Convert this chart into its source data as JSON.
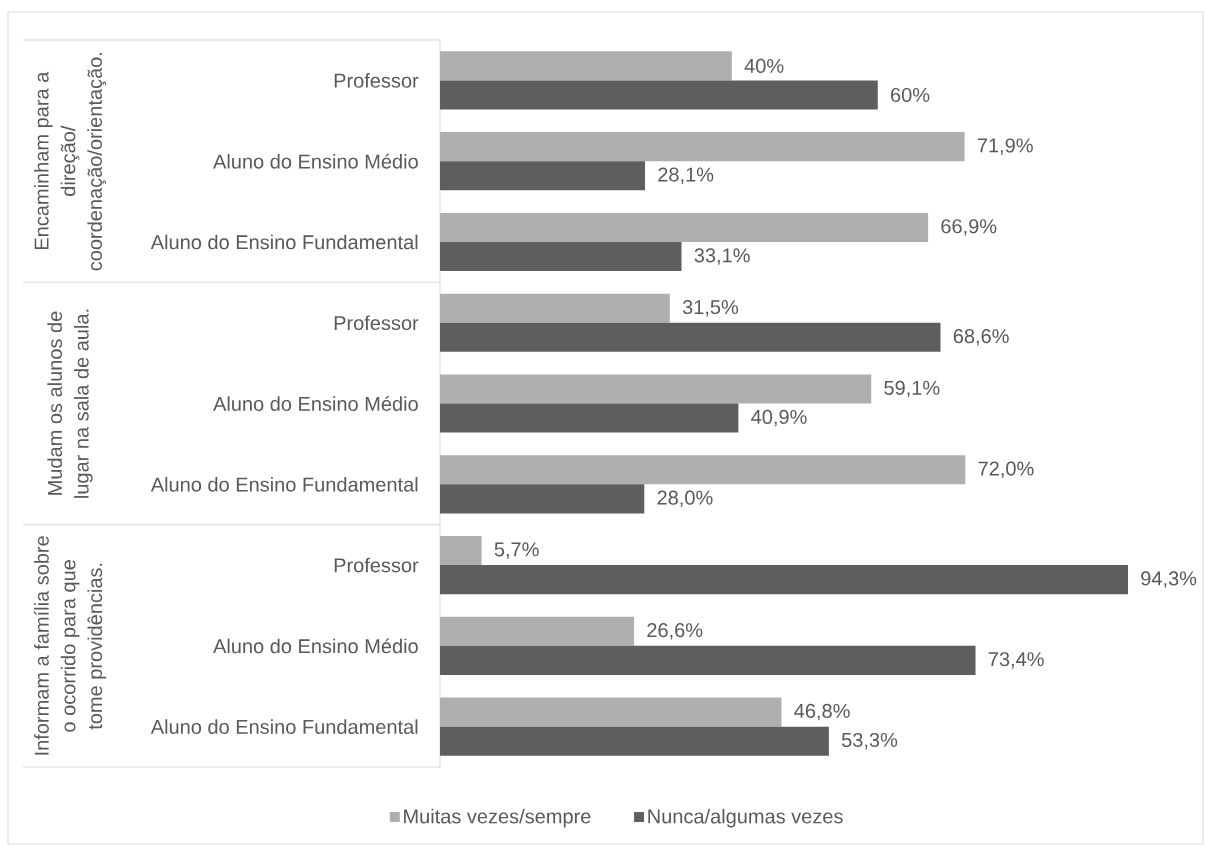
{
  "chart_data": {
    "type": "bar",
    "orientation": "horizontal",
    "categories": [
      "Professor",
      "Aluno do Ensino Médio",
      "Aluno do Ensino Fundamental",
      "Professor",
      "Aluno do Ensino Médio",
      "Aluno do Ensino Fundamental",
      "Professor",
      "Aluno do Ensino Médio",
      "Aluno do Ensino Fundamental"
    ],
    "series": [
      {
        "name": "Muitas vezes/sempre",
        "color": "#afafaf",
        "values": [
          40,
          71.9,
          66.9,
          31.5,
          59.1,
          72.0,
          5.7,
          26.6,
          46.8
        ],
        "value_labels": [
          "40%",
          "71,9%",
          "66,9%",
          "31,5%",
          "59,1%",
          "72,0%",
          "5,7%",
          "26,6%",
          "46,8%"
        ]
      },
      {
        "name": "Nunca/algumas vezes",
        "color": "#5e5e5e",
        "values": [
          60,
          28.1,
          33.1,
          68.6,
          40.9,
          28.0,
          94.3,
          73.4,
          53.3
        ],
        "value_labels": [
          "60%",
          "28,1%",
          "33,1%",
          "68,6%",
          "40,9%",
          "28,0%",
          "94,3%",
          "73,4%",
          "53,3%"
        ]
      }
    ],
    "annotations": [
      "Encaminham para a direção/ coordenação/orientação.",
      "Mudam os alunos de lugar na sala de aula.",
      "Informam a família sobre o ocorrido para que tome providências."
    ],
    "legend": "bottom"
  }
}
